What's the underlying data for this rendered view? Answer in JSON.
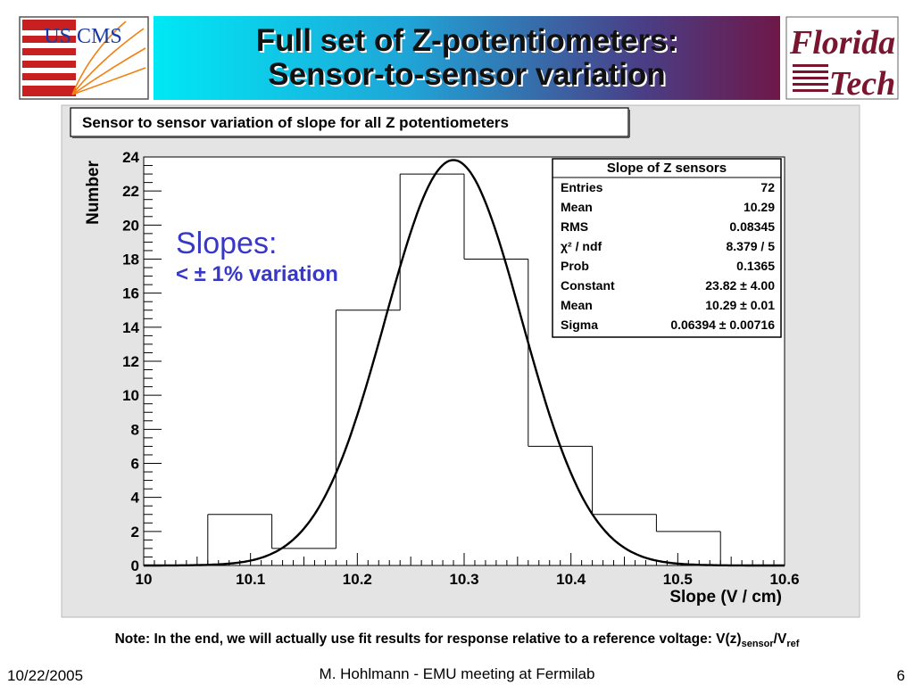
{
  "header": {
    "title_lines": [
      "Full set of Z-potentiometers:",
      "Sensor-to-sensor variation"
    ],
    "logo_left_text": "US CMS",
    "logo_right_lines": [
      "Florida",
      "Tech"
    ]
  },
  "chart_data": {
    "type": "histogram",
    "title": "Sensor to sensor variation of slope for all Z potentiometers",
    "xlabel": "Slope (V / cm)",
    "ylabel": "Number",
    "xlim": [
      10.0,
      10.6
    ],
    "ylim": [
      0,
      24
    ],
    "x_ticks": [
      "10",
      "10.1",
      "10.2",
      "10.3",
      "10.4",
      "10.5",
      "10.6"
    ],
    "y_ticks": [
      "0",
      "2",
      "4",
      "6",
      "8",
      "10",
      "12",
      "14",
      "16",
      "18",
      "20",
      "22",
      "24"
    ],
    "bin_edges": [
      10.0,
      10.06,
      10.12,
      10.18,
      10.24,
      10.3,
      10.36,
      10.42,
      10.48,
      10.54,
      10.6
    ],
    "bin_counts": [
      0,
      3,
      1,
      15,
      23,
      18,
      7,
      3,
      2,
      0
    ],
    "fit": {
      "function": "gaus",
      "constant": 23.82,
      "mean": 10.29,
      "sigma": 0.06394
    },
    "stats": {
      "title": "Slope of Z sensors",
      "rows": [
        {
          "label": "Entries",
          "value": "72"
        },
        {
          "label": "Mean",
          "value": "10.29"
        },
        {
          "label": "RMS",
          "value": "0.08345"
        },
        {
          "label": "χ² / ndf",
          "value": "8.379 / 5"
        },
        {
          "label": "Prob",
          "value": "0.1365"
        },
        {
          "label": "Constant",
          "value": "23.82 ± 4.00"
        },
        {
          "label": "Mean",
          "value": "10.29 ± 0.01"
        },
        {
          "label": "Sigma",
          "value": "0.06394 ± 0.00716"
        }
      ]
    },
    "annotation": {
      "title": "Slopes:",
      "subtitle": "< ± 1% variation"
    }
  },
  "footnote": {
    "text": "Note: In the end, we will actually use fit results for response relative to a reference voltage: V(z)",
    "sub1": "sensor",
    "mid": "/V",
    "sub2": "ref"
  },
  "footer": {
    "date": "10/22/2005",
    "center": "M. Hohlmann - EMU meeting at Fermilab",
    "page": "6"
  },
  "colors": {
    "banner_start": "#00e8f4",
    "banner_end": "#6e1848",
    "canvas": "#e4e4e4",
    "annotation": "#3838c8",
    "fit_logo": "#7a1530"
  }
}
